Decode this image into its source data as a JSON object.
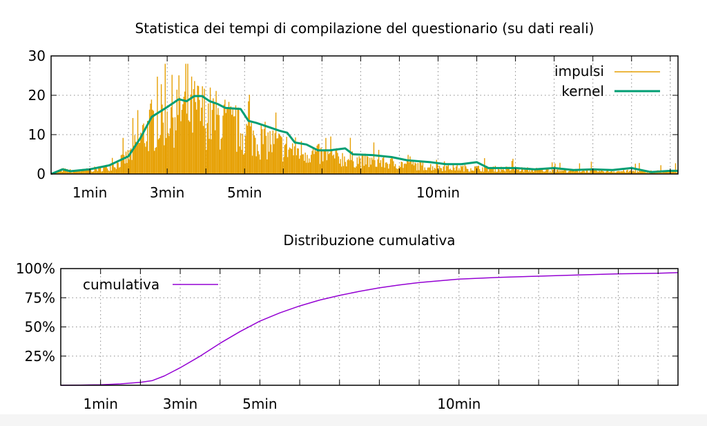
{
  "chart_data": [
    {
      "type": "bar",
      "title": "Statistica dei tempi di compilazione del questionario (su dati reali)",
      "xlabel": "",
      "ylabel": "",
      "x_unit": "minutes",
      "xlim": [
        0,
        16.2
      ],
      "ylim": [
        0,
        30
      ],
      "yticks": [
        0,
        10,
        20,
        30
      ],
      "xticks": [
        {
          "value": 1,
          "label": "1min"
        },
        {
          "value": 3,
          "label": "3min"
        },
        {
          "value": 5,
          "label": "5min"
        },
        {
          "value": 10,
          "label": "10min"
        }
      ],
      "grid": true,
      "legend_position": "top-right",
      "series": [
        {
          "name": "impulsi",
          "kind": "impulses",
          "color": "#e69f00",
          "anchors": [
            [
              0,
              0
            ],
            [
              0.3,
              1.2
            ],
            [
              0.6,
              0.8
            ],
            [
              1.0,
              1.2
            ],
            [
              1.5,
              2.0
            ],
            [
              2.0,
              5.0
            ],
            [
              2.5,
              13.5
            ],
            [
              3.0,
              18.5
            ],
            [
              3.5,
              19.5
            ],
            [
              4.0,
              17.5
            ],
            [
              4.5,
              15.0
            ],
            [
              5.0,
              12.0
            ],
            [
              5.5,
              10.0
            ],
            [
              6.0,
              8.0
            ],
            [
              7.0,
              5.5
            ],
            [
              8.0,
              4.0
            ],
            [
              9.0,
              3.0
            ],
            [
              10.0,
              2.0
            ],
            [
              11.0,
              1.7
            ],
            [
              12.0,
              1.4
            ],
            [
              13.0,
              1.1
            ],
            [
              14.0,
              0.9
            ],
            [
              15.0,
              0.8
            ],
            [
              16.2,
              0.7
            ]
          ]
        },
        {
          "name": "kernel",
          "kind": "line",
          "color": "#009e73",
          "points": [
            [
              0,
              0
            ],
            [
              0.3,
              1.2
            ],
            [
              0.5,
              0.7
            ],
            [
              1.0,
              1.2
            ],
            [
              1.5,
              2.2
            ],
            [
              2.0,
              4.5
            ],
            [
              2.3,
              9.0
            ],
            [
              2.6,
              14.5
            ],
            [
              3.0,
              17.0
            ],
            [
              3.3,
              19.0
            ],
            [
              3.5,
              18.5
            ],
            [
              3.7,
              19.8
            ],
            [
              3.9,
              19.8
            ],
            [
              4.1,
              18.5
            ],
            [
              4.3,
              17.8
            ],
            [
              4.5,
              16.8
            ],
            [
              4.9,
              16.5
            ],
            [
              5.1,
              13.5
            ],
            [
              5.3,
              13.0
            ],
            [
              5.6,
              12.0
            ],
            [
              5.9,
              11.0
            ],
            [
              6.1,
              10.5
            ],
            [
              6.3,
              8.0
            ],
            [
              6.6,
              7.5
            ],
            [
              6.9,
              6.0
            ],
            [
              7.2,
              6.0
            ],
            [
              7.6,
              6.5
            ],
            [
              7.8,
              5.0
            ],
            [
              8.3,
              4.8
            ],
            [
              8.8,
              4.3
            ],
            [
              9.2,
              3.5
            ],
            [
              9.8,
              3.0
            ],
            [
              10.2,
              2.5
            ],
            [
              10.6,
              2.5
            ],
            [
              11.0,
              3.0
            ],
            [
              11.3,
              1.5
            ],
            [
              12.0,
              1.5
            ],
            [
              12.5,
              1.2
            ],
            [
              13.0,
              1.5
            ],
            [
              13.5,
              1.0
            ],
            [
              14.0,
              1.2
            ],
            [
              14.5,
              1.0
            ],
            [
              15.0,
              1.5
            ],
            [
              15.5,
              0.5
            ],
            [
              16.0,
              0.8
            ],
            [
              16.2,
              0.8
            ]
          ]
        }
      ]
    },
    {
      "type": "line",
      "title": "Distribuzione cumulativa",
      "xlabel": "",
      "ylabel": "",
      "x_unit": "minutes",
      "xlim": [
        0,
        15.5
      ],
      "ylim": [
        0,
        100
      ],
      "yticks": [
        {
          "value": 25,
          "label": "25%"
        },
        {
          "value": 50,
          "label": "50%"
        },
        {
          "value": 75,
          "label": "75%"
        },
        {
          "value": 100,
          "label": "100%"
        }
      ],
      "xticks": [
        {
          "value": 1,
          "label": "1min"
        },
        {
          "value": 3,
          "label": "3min"
        },
        {
          "value": 5,
          "label": "5min"
        },
        {
          "value": 10,
          "label": "10min"
        }
      ],
      "grid": true,
      "legend_position": "top-left",
      "series": [
        {
          "name": "cumulativa",
          "color": "#9400d3",
          "points": [
            [
              0,
              0
            ],
            [
              0.5,
              0.2
            ],
            [
              1.0,
              0.5
            ],
            [
              1.5,
              1.2
            ],
            [
              2.0,
              2.5
            ],
            [
              2.3,
              4.0
            ],
            [
              2.6,
              8.0
            ],
            [
              3.0,
              15.0
            ],
            [
              3.5,
              25.0
            ],
            [
              4.0,
              36.0
            ],
            [
              4.5,
              46.0
            ],
            [
              5.0,
              55.0
            ],
            [
              5.5,
              62.0
            ],
            [
              6.0,
              68.0
            ],
            [
              6.5,
              73.0
            ],
            [
              7.0,
              77.0
            ],
            [
              7.5,
              80.5
            ],
            [
              8.0,
              83.5
            ],
            [
              8.5,
              86.0
            ],
            [
              9.0,
              88.0
            ],
            [
              9.5,
              89.5
            ],
            [
              10.0,
              91.0
            ],
            [
              11.0,
              92.5
            ],
            [
              12.0,
              93.5
            ],
            [
              13.0,
              94.5
            ],
            [
              14.0,
              95.5
            ],
            [
              15.0,
              96.0
            ],
            [
              15.5,
              96.5
            ]
          ]
        }
      ]
    }
  ]
}
